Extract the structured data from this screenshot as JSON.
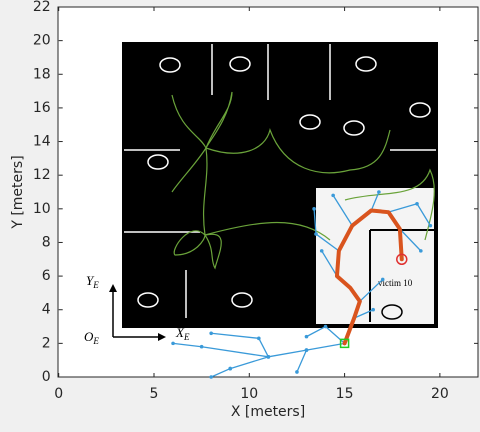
{
  "chart_data": {
    "type": "line",
    "xlabel": "X [meters]",
    "ylabel": "Y [meters]",
    "xlim": [
      0,
      22
    ],
    "ylim": [
      0,
      22
    ],
    "xticks": [
      0,
      5,
      10,
      15,
      20
    ],
    "yticks": [
      0,
      2,
      4,
      6,
      8,
      10,
      12,
      14,
      16,
      18,
      20,
      22
    ],
    "series": [
      {
        "color": "#3a9ad9",
        "x": [
          15,
          13,
          11,
          9,
          null,
          13,
          12.5,
          null,
          11,
          10.5,
          8,
          null,
          9,
          8,
          null,
          11,
          7.5,
          6,
          null,
          15,
          14,
          13,
          null,
          15.5,
          16.5,
          null,
          15.8,
          17,
          null,
          14.6,
          13.8,
          null,
          14.7,
          13.5,
          13.4,
          null,
          15.4,
          14.4,
          null,
          16.4,
          16.8,
          null,
          17.3,
          18.8,
          19.5,
          null,
          17.9,
          19
        ],
        "values": [
          2,
          1.6,
          1.2,
          0.5,
          null,
          1.6,
          0.3,
          null,
          1.2,
          2.3,
          2.6,
          null,
          0.5,
          0,
          null,
          1.2,
          1.8,
          2,
          null,
          2,
          3,
          2.4,
          null,
          3.5,
          4,
          null,
          4.5,
          5.8,
          null,
          6,
          7.5,
          null,
          7.5,
          8.5,
          10,
          null,
          9,
          10.8,
          null,
          9.9,
          11,
          null,
          9.8,
          10.3,
          9,
          null,
          8.8,
          7.5
        ]
      },
      {
        "color": "#d9541e",
        "x": [
          15,
          15.5,
          15.8,
          15.3,
          14.6,
          14.7,
          15.4,
          16.4,
          17.3,
          17.9,
          18
        ],
        "values": [
          2,
          3.5,
          4.5,
          5.3,
          6,
          7.5,
          9,
          9.9,
          9.8,
          8.8,
          7
        ]
      }
    ],
    "start": {
      "x": 15,
      "y": 2,
      "color": "#22cc22"
    },
    "goal": {
      "x": 18,
      "y": 7,
      "color": "#e03030"
    },
    "annotations": {
      "victim": "victim 10",
      "y_axis_frame": {
        "text": "Y",
        "sub": "E"
      },
      "origin_frame": {
        "text": "O",
        "sub": "E"
      },
      "x_axis_frame": {
        "text": "X",
        "sub": "E"
      }
    }
  }
}
